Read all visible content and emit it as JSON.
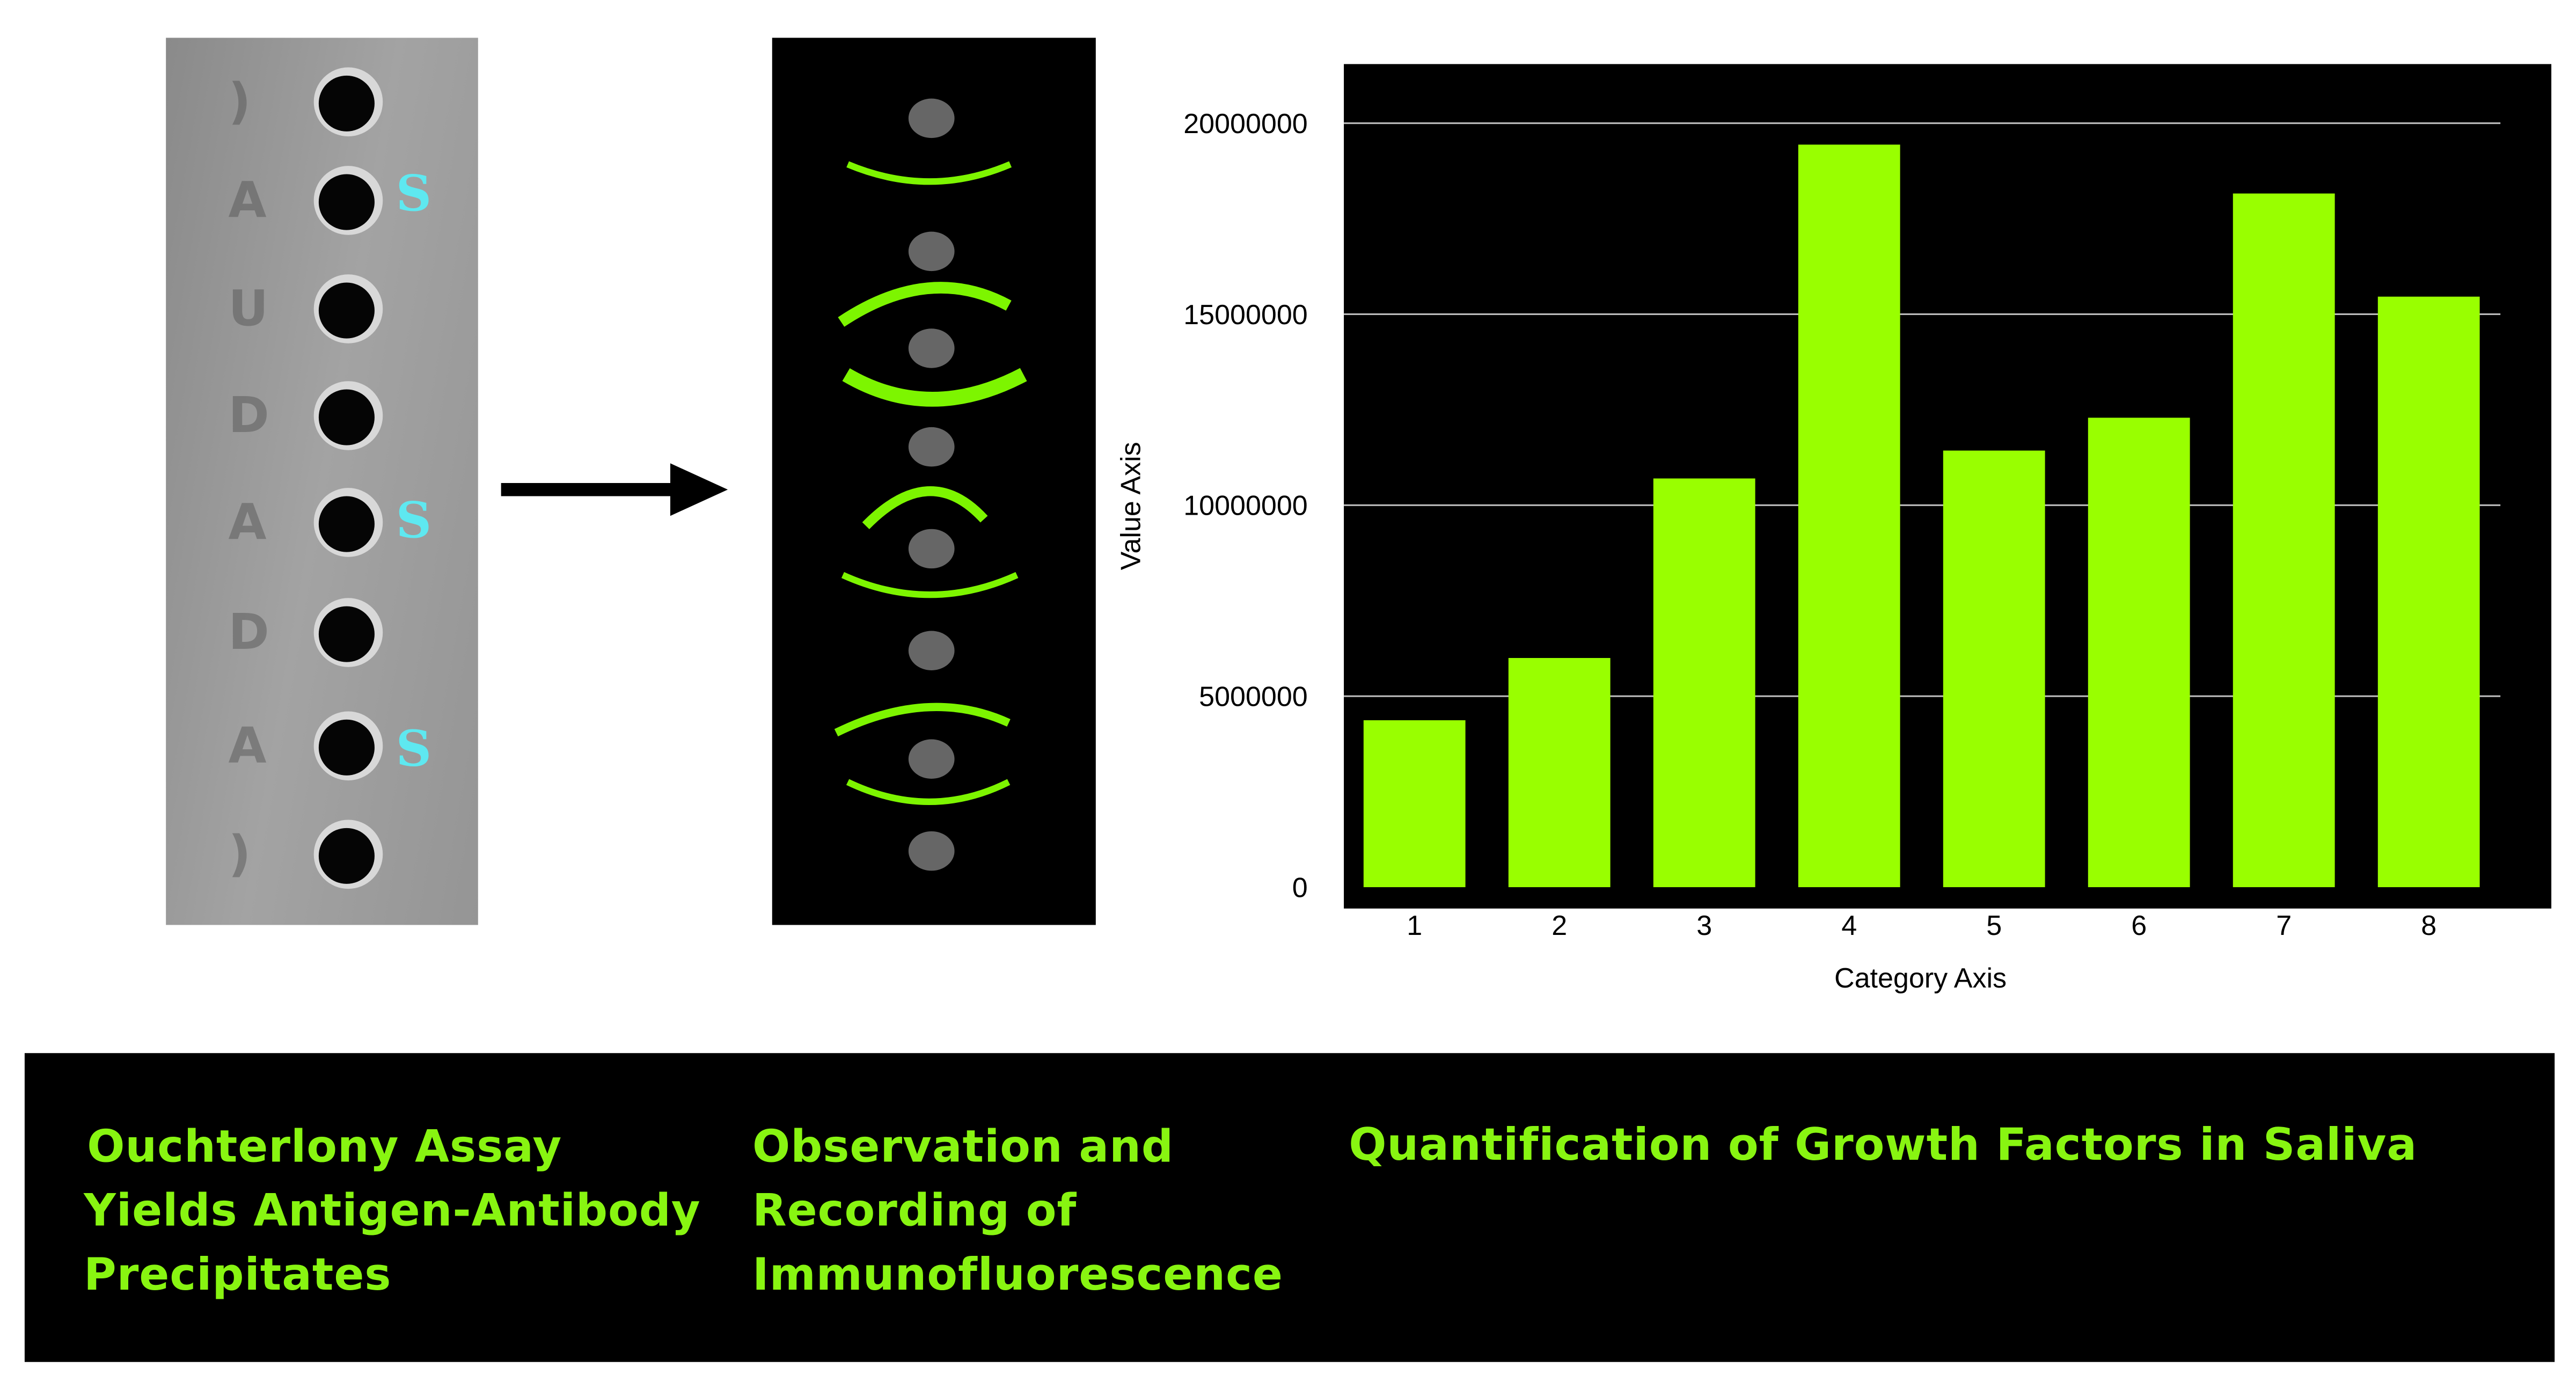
{
  "panels": {
    "photo": {
      "well_labels": [
        "S",
        "S",
        "S"
      ],
      "label_color": "#5ee8f0"
    },
    "fluorescence": {
      "arc_color": "#7df500",
      "well_color": "#666666"
    }
  },
  "captions": {
    "left": [
      "Ouchterlony Assay",
      "Yields Antigen-Antibody",
      "Precipitates"
    ],
    "middle": [
      "Observation and",
      "Recording of",
      "Immunofluorescence"
    ],
    "right": "Quantification of Growth Factors in Saliva"
  },
  "chart_data": {
    "type": "bar",
    "title": "",
    "xlabel": "Category Axis",
    "ylabel": "Value Axis",
    "categories": [
      "1",
      "2",
      "3",
      "4",
      "5",
      "6",
      "7",
      "8"
    ],
    "values": [
      4370000,
      6000000,
      10700000,
      19440000,
      11430000,
      12290000,
      18160000,
      15460000
    ],
    "ylim": [
      0,
      20000000
    ],
    "yticks": [
      "0",
      "5000000",
      "10000000",
      "15000000",
      "20000000"
    ],
    "grid": true,
    "bar_color": "#99ff00",
    "background": "#000000"
  }
}
